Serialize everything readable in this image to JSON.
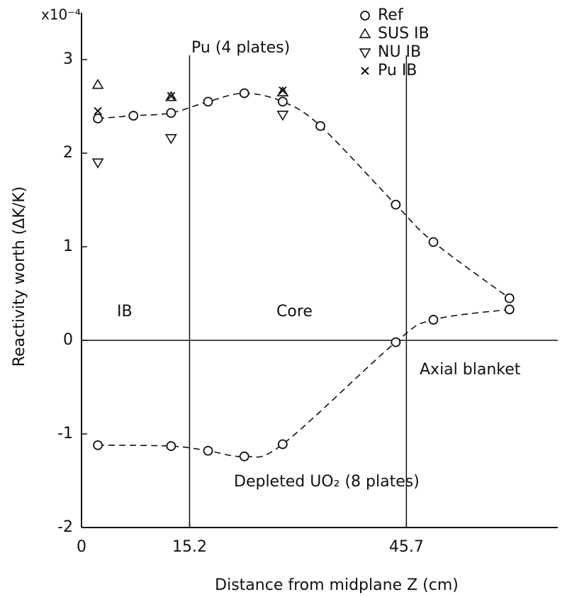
{
  "chart_data": {
    "type": "scatter",
    "y_unit": "x10⁻⁴",
    "ylabel": "Reactivity worth (ΔK/K)",
    "xlabel": "Distance from midplane Z (cm)",
    "annotations": {
      "pu": "Pu (4 plates)",
      "ib": "IB",
      "core": "Core",
      "blanket": "Axial blanket",
      "depleted": "Depleted UO₂ (8 plates)"
    },
    "xlim": [
      0,
      67
    ],
    "ylim": [
      -2,
      3.5
    ],
    "xticks": [
      0,
      15.2,
      45.7
    ],
    "yticks": [
      -2,
      -1,
      0,
      1,
      2,
      3
    ],
    "vlines": [
      15.2,
      45.7
    ],
    "hline": 0,
    "series": [
      {
        "name": "Ref",
        "marker": "circle",
        "color": "#111111",
        "line": true,
        "x": [
          2.3,
          7.3,
          12.6,
          17.8,
          22.9,
          28.3,
          33.6,
          44.2,
          49.5,
          60.2
        ],
        "values": [
          2.37,
          2.4,
          2.43,
          2.55,
          2.64,
          2.55,
          2.29,
          1.45,
          1.05,
          0.45
        ]
      },
      {
        "name": "SUS IB",
        "marker": "triangle-up",
        "color": "#111111",
        "line": false,
        "x": [
          2.3,
          12.6,
          28.3
        ],
        "values": [
          2.73,
          2.6,
          2.65
        ]
      },
      {
        "name": "NU IB",
        "marker": "triangle-down",
        "color": "#111111",
        "line": false,
        "x": [
          2.3,
          12.6,
          28.3
        ],
        "values": [
          1.9,
          2.16,
          2.41
        ]
      },
      {
        "name": "Pu IB",
        "marker": "cross",
        "color": "#111111",
        "line": false,
        "x": [
          2.3,
          12.6,
          28.3
        ],
        "values": [
          2.45,
          2.61,
          2.67
        ]
      },
      {
        "marker": "circle",
        "color": "#111111",
        "line": true,
        "x": [
          2.3,
          12.6,
          17.8,
          22.9,
          28.3,
          44.2,
          49.5,
          60.2
        ],
        "values": [
          -1.12,
          -1.13,
          -1.18,
          -1.24,
          -1.11,
          -0.02,
          0.22,
          0.33
        ]
      }
    ]
  }
}
